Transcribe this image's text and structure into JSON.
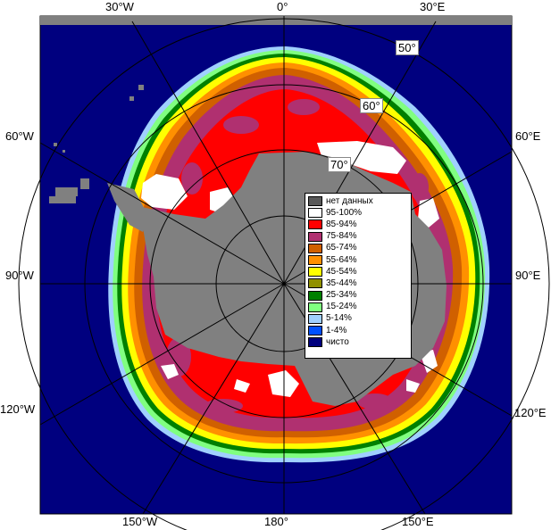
{
  "colors": {
    "ocean": "#00007f",
    "land": "#808080",
    "nodata": "#585858",
    "c95_100": "#ffffff",
    "c85_94": "#ff0000",
    "c75_84": "#b03070",
    "c65_74": "#d06000",
    "c55_64": "#ff9000",
    "c45_54": "#ffff00",
    "c35_44": "#909000",
    "c25_34": "#008000",
    "c15_24": "#80ff80",
    "c5_14": "#a0d0ff",
    "c1_4": "#0050ff",
    "clear": "#00007f"
  },
  "longitude_labels": {
    "w30": "30°W",
    "zero": "0°",
    "e30": "30°E",
    "w60": "60°W",
    "e60": "60°E",
    "w90": "90°W",
    "e90": "90°E",
    "w120": "120°W",
    "e120": "120°E",
    "w150": "150°W",
    "lon180": "180°",
    "e150": "150°E"
  },
  "latitude_labels": {
    "lat50": "50°",
    "lat60": "60°",
    "lat70": "70°"
  },
  "legend": {
    "items": [
      {
        "label": "нет данных",
        "color": "#585858"
      },
      {
        "label": "95-100%",
        "color": "#ffffff"
      },
      {
        "label": "85-94%",
        "color": "#ff0000"
      },
      {
        "label": "75-84%",
        "color": "#b03070"
      },
      {
        "label": "65-74%",
        "color": "#d06000"
      },
      {
        "label": "55-64%",
        "color": "#ff9000"
      },
      {
        "label": "45-54%",
        "color": "#ffff00"
      },
      {
        "label": "35-44%",
        "color": "#909000"
      },
      {
        "label": "25-34%",
        "color": "#008000"
      },
      {
        "label": "15-24%",
        "color": "#80ff80"
      },
      {
        "label": "5-14%",
        "color": "#a0d0ff"
      },
      {
        "label": "1-4%",
        "color": "#0050ff"
      },
      {
        "label": "чисто",
        "color": "#00007f"
      }
    ]
  }
}
